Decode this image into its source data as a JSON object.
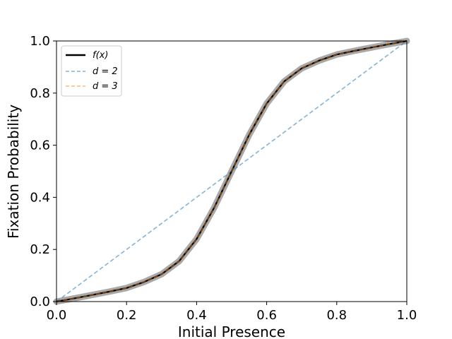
{
  "chart_data": {
    "type": "line",
    "xlabel": "Initial Presence",
    "ylabel": "Fixation Probability",
    "xlim": [
      0,
      1
    ],
    "ylim": [
      0,
      1
    ],
    "x_ticks": [
      "0.0",
      "0.2",
      "0.4",
      "0.6",
      "0.8",
      "1.0"
    ],
    "y_ticks": [
      "0.0",
      "0.2",
      "0.4",
      "0.6",
      "0.8",
      "1.0"
    ],
    "grid": false,
    "legend_position": "top-left",
    "x": [
      0.0,
      0.05,
      0.1,
      0.15,
      0.2,
      0.25,
      0.3,
      0.35,
      0.4,
      0.45,
      0.5,
      0.55,
      0.6,
      0.65,
      0.7,
      0.75,
      0.8,
      0.85,
      0.9,
      0.95,
      1.0
    ],
    "series": [
      {
        "name": "f(x)",
        "legend_label": "f(x)",
        "color": "#000000",
        "style": "solid",
        "values": [
          0.0,
          0.012,
          0.025,
          0.038,
          0.052,
          0.075,
          0.105,
          0.155,
          0.24,
          0.36,
          0.5,
          0.64,
          0.76,
          0.845,
          0.895,
          0.925,
          0.948,
          0.962,
          0.975,
          0.988,
          1.0
        ]
      },
      {
        "name": "d = 2",
        "legend_label": "d = 2",
        "color": "#1f77b4",
        "style": "dashed",
        "values": [
          0.0,
          0.05,
          0.1,
          0.15,
          0.2,
          0.25,
          0.3,
          0.35,
          0.4,
          0.45,
          0.5,
          0.55,
          0.6,
          0.65,
          0.7,
          0.75,
          0.8,
          0.85,
          0.9,
          0.95,
          1.0
        ]
      },
      {
        "name": "d = 3",
        "legend_label": "d = 3",
        "color": "#ff7f0e",
        "style": "dashed",
        "values": [
          0.0,
          0.012,
          0.025,
          0.038,
          0.052,
          0.075,
          0.105,
          0.155,
          0.24,
          0.36,
          0.5,
          0.64,
          0.76,
          0.845,
          0.895,
          0.925,
          0.948,
          0.962,
          0.975,
          0.988,
          1.0
        ]
      }
    ],
    "band_color": "#a0a0a0"
  }
}
